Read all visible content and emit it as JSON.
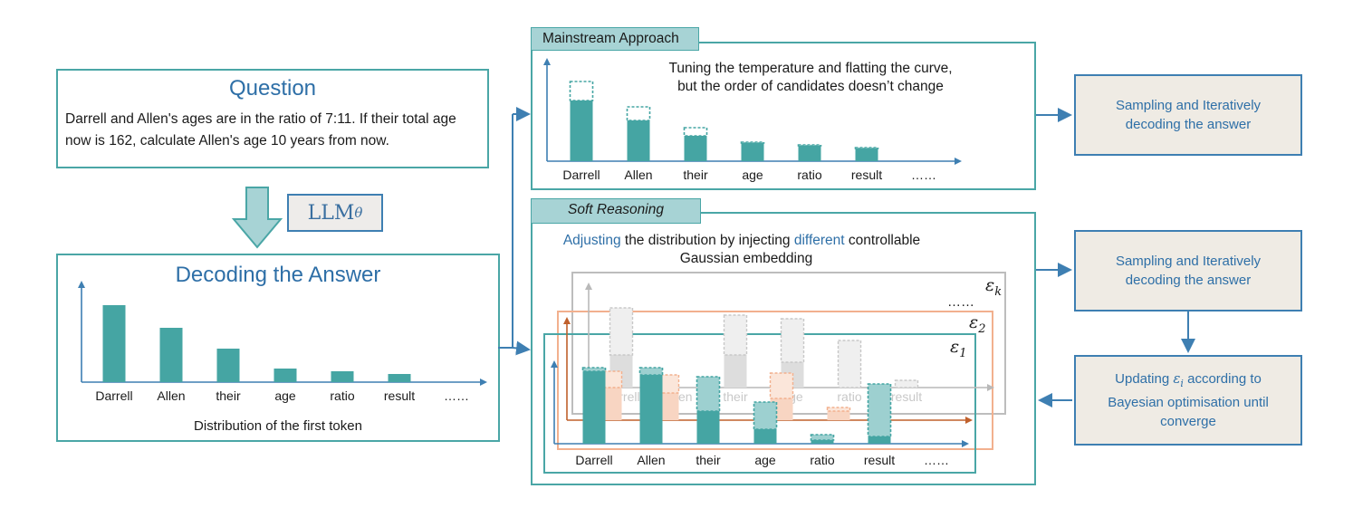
{
  "question": {
    "title": "Question",
    "line1": "Darrell and Allen's ages are in the ratio of 7:11. If their total age",
    "line2": "now is 162, calculate Allen's age 10 years from now."
  },
  "llm_label": "LLM",
  "llm_subscript": "θ",
  "decoding": {
    "title": "Decoding the Answer",
    "caption": "Distribution of the first token"
  },
  "tokens": [
    "Darrell",
    "Allen",
    "their",
    "age",
    "ratio",
    "result",
    "……"
  ],
  "mainstream": {
    "tab": "Mainstream Approach",
    "note1": "Tuning the temperature and flatting the curve,",
    "note2": "but the order of candidates doesn’t change"
  },
  "soft": {
    "tab": "Soft Reasoning",
    "desc_word1": "Adjusting",
    "desc_mid1": " the distribution by injecting ",
    "desc_word2": "different",
    "desc_mid2": " controllable",
    "desc_line2": "Gaussian embedding",
    "eps_k": "ε",
    "eps_k_sub": "k",
    "eps_2": "ε",
    "eps_2_sub": "2",
    "eps_1": "ε",
    "eps_1_sub": "1",
    "dots": "……"
  },
  "side": {
    "box1_line1": "Sampling and Iteratively",
    "box1_line2": "decoding the answer",
    "box2_line1": "Sampling and Iteratively",
    "box2_line2": "decoding the answer",
    "box3_line1a": "Updating ",
    "box3_eps": "ε",
    "box3_eps_sub": "i",
    "box3_line1b": " according to",
    "box3_line2": "Bayesian optimisation until",
    "box3_line3": "converge"
  },
  "chart_data": [
    {
      "type": "bar",
      "name": "first-token-distribution",
      "categories": [
        "Darrell",
        "Allen",
        "their",
        "age",
        "ratio",
        "result",
        "……"
      ],
      "values": [
        85,
        60,
        37,
        15,
        12,
        9,
        0
      ]
    },
    {
      "type": "bar",
      "name": "mainstream",
      "categories": [
        "Darrell",
        "Allen",
        "their",
        "age",
        "ratio",
        "result",
        "……"
      ],
      "values": [
        67,
        45,
        28,
        20,
        17,
        14,
        0
      ],
      "original_values": [
        88,
        60,
        37,
        21,
        18,
        15,
        0
      ]
    }
  ],
  "colors": {
    "teal": "#45a5a3",
    "teal_light": "#9dd0d0",
    "border_teal": "#4aa6a6",
    "blue": "#2e6fa7",
    "orange": "#f2a57f",
    "gray": "#b9b9b9",
    "side_bg": "#efebe4"
  }
}
